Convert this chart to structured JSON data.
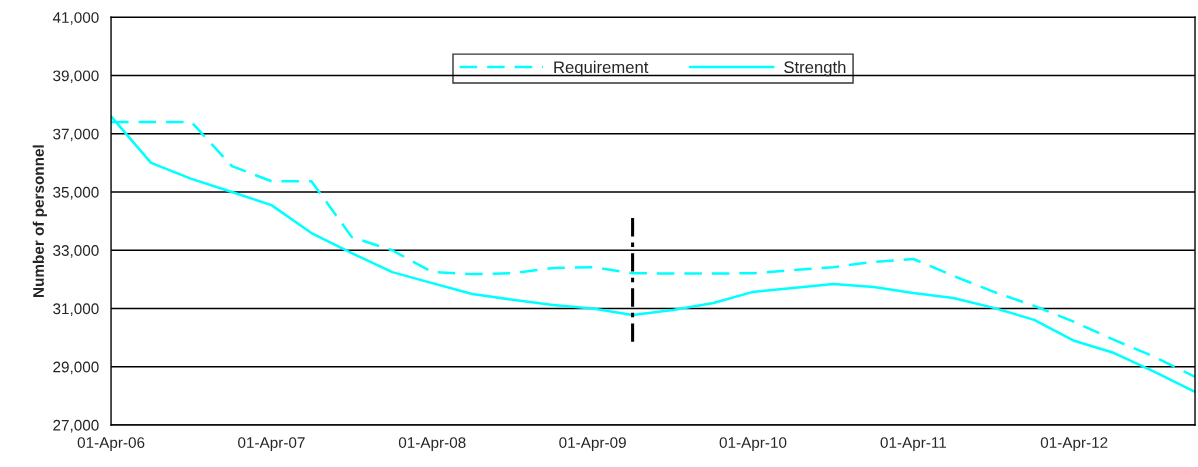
{
  "chart_data": {
    "type": "line",
    "ylabel": "Number of personnel",
    "x": [
      "2006-04-01",
      "2006-07-01",
      "2006-10-01",
      "2007-01-01",
      "2007-04-01",
      "2007-07-01",
      "2007-10-01",
      "2008-01-01",
      "2008-04-01",
      "2008-07-01",
      "2008-10-01",
      "2009-01-01",
      "2009-04-01",
      "2009-07-01",
      "2009-10-01",
      "2010-01-01",
      "2010-04-01",
      "2010-07-01",
      "2010-10-01",
      "2011-01-01",
      "2011-04-01",
      "2011-07-01",
      "2011-10-01",
      "2012-01-01",
      "2012-04-01",
      "2012-07-01",
      "2012-10-01",
      "2013-01-01"
    ],
    "series": [
      {
        "name": "Requirement",
        "color": "#00ffff",
        "line_style": "dashed",
        "values": [
          37400,
          37400,
          37400,
          35890,
          35370,
          35370,
          33450,
          33000,
          32250,
          32180,
          32210,
          32390,
          32420,
          32210,
          32200,
          32200,
          32210,
          32320,
          32420,
          32600,
          32700,
          32120,
          31570,
          31090,
          30540,
          29920,
          29340,
          28650
        ]
      },
      {
        "name": "Strength",
        "color": "#00ffff",
        "line_style": "solid",
        "values": [
          37600,
          36000,
          35450,
          35000,
          34550,
          33590,
          32900,
          32250,
          31870,
          31500,
          31300,
          31120,
          31000,
          30780,
          30950,
          31190,
          31570,
          31700,
          31840,
          31740,
          31530,
          31360,
          31020,
          30610,
          29890,
          29470,
          28820,
          28140
        ]
      }
    ],
    "xlim": [
      "2006-04-01",
      "2013-01-01"
    ],
    "xticks": [
      {
        "value": "2006-04-01",
        "label": "01-Apr-06"
      },
      {
        "value": "2007-04-01",
        "label": "01-Apr-07"
      },
      {
        "value": "2008-04-01",
        "label": "01-Apr-08"
      },
      {
        "value": "2009-04-01",
        "label": "01-Apr-09"
      },
      {
        "value": "2010-04-01",
        "label": "01-Apr-10"
      },
      {
        "value": "2011-04-01",
        "label": "01-Apr-11"
      },
      {
        "value": "2012-04-01",
        "label": "01-Apr-12"
      }
    ],
    "ylim": [
      27000,
      41000
    ],
    "yticks": [
      {
        "value": 27000,
        "label": "27,000"
      },
      {
        "value": 29000,
        "label": "29,000"
      },
      {
        "value": 31000,
        "label": "31,000"
      },
      {
        "value": 33000,
        "label": "33,000"
      },
      {
        "value": 35000,
        "label": "35,000"
      },
      {
        "value": 37000,
        "label": "37,000"
      },
      {
        "value": 39000,
        "label": "39,000"
      },
      {
        "value": 41000,
        "label": "41,000"
      }
    ],
    "ref_lines": [
      {
        "axis": "x",
        "value": "2009-07-01",
        "color": "#000000",
        "line_style": "dashdot"
      }
    ],
    "grid": "y",
    "legend": "top",
    "marker": "none"
  }
}
